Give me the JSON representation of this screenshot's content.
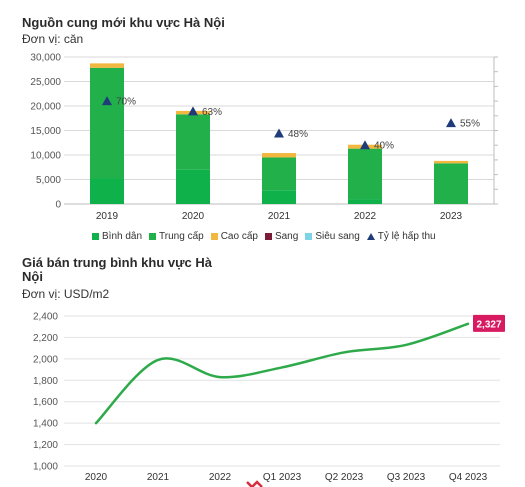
{
  "chart1": {
    "title": "Nguồn cung mới khu vực Hà Nội",
    "unit": "Đơn vị: căn",
    "legend": [
      {
        "label": "Bình dân",
        "color": "#0fb14a",
        "kind": "square"
      },
      {
        "label": "Trung cấp",
        "color": "#22b04b",
        "kind": "square"
      },
      {
        "label": "Cao cấp",
        "color": "#f2b73f",
        "kind": "square"
      },
      {
        "label": "Sang",
        "color": "#7b1c3a",
        "kind": "square"
      },
      {
        "label": "Siêu sang",
        "color": "#7fd3e6",
        "kind": "square"
      },
      {
        "label": "Tỷ lệ hấp thu",
        "color": "#1f3b7a",
        "kind": "triangle"
      }
    ]
  },
  "chart2": {
    "title_line1": "Giá bán trung bình khu vực Hà",
    "title_line2": "Nội",
    "unit": "Đơn vị: USD/m2",
    "last_label": "2,327"
  },
  "chart_data": [
    {
      "type": "bar",
      "title": "Nguồn cung mới khu vực Hà Nội",
      "categories": [
        "2019",
        "2020",
        "2021",
        "2022",
        "2023"
      ],
      "series": [
        {
          "name": "Bình dân",
          "values": [
            5200,
            7000,
            2800,
            1000,
            0
          ]
        },
        {
          "name": "Trung cấp",
          "values": [
            22600,
            11300,
            6700,
            10300,
            8300
          ]
        },
        {
          "name": "Cao cấp",
          "values": [
            900,
            700,
            900,
            800,
            500
          ]
        },
        {
          "name": "Sang",
          "values": [
            0,
            0,
            0,
            0,
            0
          ]
        },
        {
          "name": "Siêu sang",
          "values": [
            0,
            0,
            0,
            0,
            0
          ]
        }
      ],
      "absorption": {
        "name": "Tỷ lệ hấp thu",
        "values": [
          70,
          63,
          48,
          40,
          55
        ],
        "labels": [
          "70%",
          "63%",
          "48%",
          "40%",
          "55%"
        ]
      },
      "yticks": [
        "0",
        "5,000",
        "10,000",
        "15,000",
        "20,000",
        "25,000",
        "30,000"
      ],
      "ylim": [
        0,
        30000
      ],
      "pct_axis_lim": [
        0,
        100
      ]
    },
    {
      "type": "line",
      "title": "Giá bán trung bình khu vực Hà Nội",
      "categories": [
        "2020",
        "2021",
        "2022",
        "Q1 2023",
        "Q2 2023",
        "Q3 2023",
        "Q4 2023"
      ],
      "values": [
        1400,
        1990,
        1830,
        1920,
        2060,
        2130,
        2327
      ],
      "yticks": [
        "1,000",
        "1,200",
        "1,400",
        "1,600",
        "1,800",
        "2,000",
        "2,200",
        "2,400"
      ],
      "ylim": [
        1000,
        2400
      ]
    }
  ]
}
